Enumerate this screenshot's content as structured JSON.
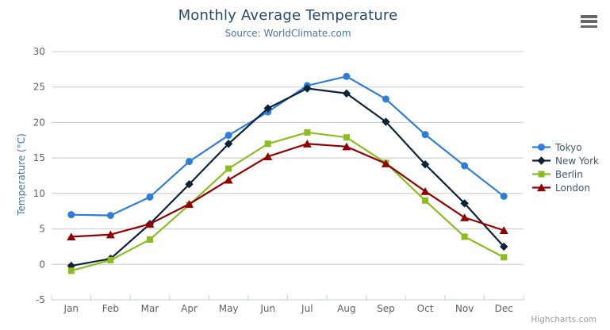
{
  "chart_data": {
    "type": "line",
    "title": "Monthly Average Temperature",
    "subtitle": "Source: WorldClimate.com",
    "xlabel": "",
    "ylabel": "Temperature (°C)",
    "categories": [
      "Jan",
      "Feb",
      "Mar",
      "Apr",
      "May",
      "Jun",
      "Jul",
      "Aug",
      "Sep",
      "Oct",
      "Nov",
      "Dec"
    ],
    "series": [
      {
        "name": "Tokyo",
        "color": "#2f7ed8",
        "marker": "circle",
        "values": [
          7.0,
          6.9,
          9.5,
          14.5,
          18.2,
          21.5,
          25.2,
          26.5,
          23.3,
          18.3,
          13.9,
          9.6
        ]
      },
      {
        "name": "New York",
        "color": "#0d233a",
        "marker": "diamond",
        "values": [
          -0.2,
          0.8,
          5.7,
          11.3,
          17.0,
          22.0,
          24.8,
          24.1,
          20.1,
          14.1,
          8.6,
          2.5
        ]
      },
      {
        "name": "Berlin",
        "color": "#8bbc21",
        "marker": "square",
        "values": [
          -0.9,
          0.6,
          3.5,
          8.4,
          13.5,
          17.0,
          18.6,
          17.9,
          14.3,
          9.0,
          3.9,
          1.0
        ]
      },
      {
        "name": "London",
        "color": "#910000",
        "marker": "triangle",
        "values": [
          3.9,
          4.2,
          5.7,
          8.5,
          11.9,
          15.2,
          17.0,
          16.6,
          14.2,
          10.3,
          6.6,
          4.8
        ]
      }
    ],
    "ylim": [
      -5,
      30
    ],
    "ytick_step": 5,
    "grid": true,
    "legend_position": "right"
  },
  "credits": {
    "label": "Highcharts.com"
  },
  "colors": {
    "title_text": "#274b6d",
    "subtitle_text": "#4d759e",
    "axis_title_text": "#4572a7",
    "tick_label_text": "#606060",
    "gridline": "#C8C8C8",
    "axis_line": "#C0D0E0",
    "legend_text": "#3E576F",
    "menu_icon": "#666666",
    "credits_text": "#999999"
  }
}
